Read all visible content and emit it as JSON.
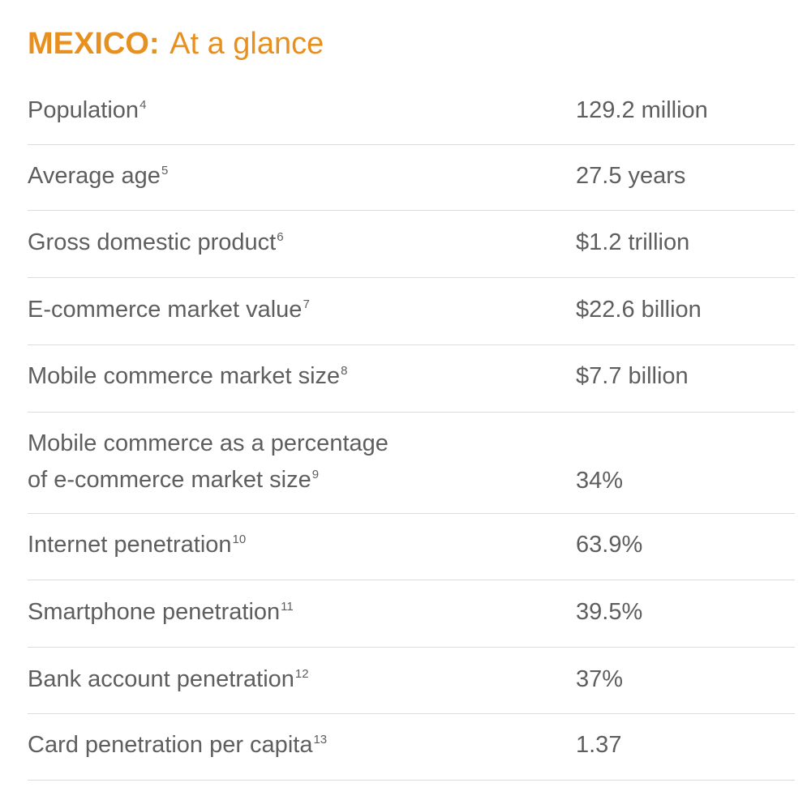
{
  "header": {
    "country": "MEXICO:",
    "subtitle": "At a glance"
  },
  "accent_color": "#e8901f",
  "rows": [
    {
      "label": "Population",
      "note": "4",
      "value": "129.2 million"
    },
    {
      "label": "Average age",
      "note": "5",
      "value": "27.5 years"
    },
    {
      "label": "Gross domestic product",
      "note": "6",
      "value": "$1.2 trillion"
    },
    {
      "label": "E-commerce market value",
      "note": "7",
      "value": "$22.6 billion"
    },
    {
      "label": "Mobile commerce market size",
      "note": "8",
      "value": "$7.7 billion"
    },
    {
      "label_line1": "Mobile commerce as a percentage",
      "label_line2": "of e-commerce market size",
      "note": "9",
      "value": "34%"
    },
    {
      "label": "Internet penetration",
      "note": "10",
      "value": "63.9%"
    },
    {
      "label": "Smartphone penetration",
      "note": "11",
      "value": "39.5%"
    },
    {
      "label": "Bank account penetration",
      "note": "12",
      "value": "37%"
    },
    {
      "label": "Card penetration per capita",
      "note": "13",
      "value": "1.37"
    }
  ]
}
